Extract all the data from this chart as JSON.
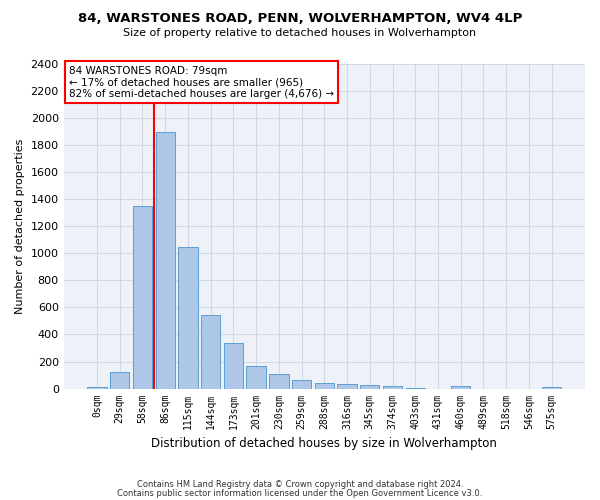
{
  "title": "84, WARSTONES ROAD, PENN, WOLVERHAMPTON, WV4 4LP",
  "subtitle": "Size of property relative to detached houses in Wolverhampton",
  "xlabel": "Distribution of detached houses by size in Wolverhampton",
  "ylabel": "Number of detached properties",
  "bar_labels": [
    "0sqm",
    "29sqm",
    "58sqm",
    "86sqm",
    "115sqm",
    "144sqm",
    "173sqm",
    "201sqm",
    "230sqm",
    "259sqm",
    "288sqm",
    "316sqm",
    "345sqm",
    "374sqm",
    "403sqm",
    "431sqm",
    "460sqm",
    "489sqm",
    "518sqm",
    "546sqm",
    "575sqm"
  ],
  "bar_heights": [
    15,
    125,
    1350,
    1900,
    1045,
    545,
    340,
    170,
    110,
    60,
    40,
    30,
    28,
    20,
    5,
    0,
    22,
    0,
    0,
    0,
    15
  ],
  "bar_color": "#aec6e8",
  "bar_edge_color": "#5a9fd4",
  "vline_x": 2.5,
  "annotation_text": "84 WARSTONES ROAD: 79sqm\n← 17% of detached houses are smaller (965)\n82% of semi-detached houses are larger (4,676) →",
  "annotation_box_color": "white",
  "annotation_box_edge_color": "red",
  "vline_color": "red",
  "ylim": [
    0,
    2400
  ],
  "yticks": [
    0,
    200,
    400,
    600,
    800,
    1000,
    1200,
    1400,
    1600,
    1800,
    2000,
    2200,
    2400
  ],
  "grid_color": "#d0d8e8",
  "bg_color": "#eef2f8",
  "footer_line1": "Contains HM Land Registry data © Crown copyright and database right 2024.",
  "footer_line2": "Contains public sector information licensed under the Open Government Licence v3.0."
}
